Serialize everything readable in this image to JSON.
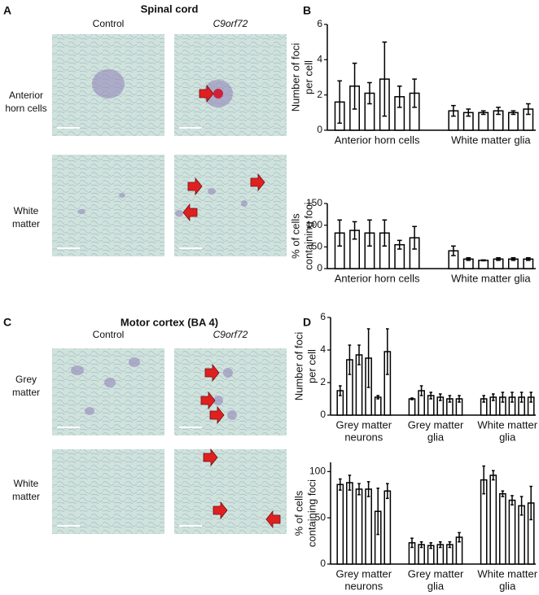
{
  "panels": [
    {
      "label": "A",
      "title": "Spinal cord",
      "columns": [
        "Control",
        "C9orf72"
      ],
      "rows": [
        [
          "Anterior",
          "horn cells"
        ],
        [
          "White",
          "matter"
        ]
      ]
    },
    {
      "label": "C",
      "title": "Motor cortex (BA 4)",
      "columns": [
        "Control",
        "C9orf72"
      ],
      "rows": [
        [
          "Grey",
          "matter"
        ],
        [
          "White",
          "matter"
        ]
      ]
    }
  ],
  "chart_data": [
    {
      "type": "bar",
      "panel": "B",
      "ylabel": [
        "Number of foci",
        "per cell"
      ],
      "ylim": [
        0,
        6
      ],
      "yticks": [
        0,
        2,
        4,
        6
      ],
      "color": "#ffffff",
      "groups": [
        {
          "label": [
            "Anterior horn cells"
          ],
          "values": [
            1.6,
            2.5,
            2.1,
            2.9,
            1.9,
            2.1
          ],
          "errors": [
            1.2,
            1.3,
            0.6,
            2.1,
            0.6,
            0.8
          ]
        },
        {
          "label": [
            "White matter glia"
          ],
          "values": [
            1.1,
            1.0,
            1.0,
            1.1,
            1.0,
            1.2
          ],
          "errors": [
            0.3,
            0.2,
            0.1,
            0.2,
            0.1,
            0.3
          ]
        }
      ]
    },
    {
      "type": "bar",
      "ylabel": [
        "% of cells",
        "containing foci"
      ],
      "ylim": [
        0,
        150
      ],
      "yticks": [
        0,
        50,
        100,
        150
      ],
      "color": "#ffffff",
      "groups": [
        {
          "label": [
            "Anterior horn cells"
          ],
          "values": [
            82,
            88,
            82,
            82,
            55,
            71
          ],
          "errors": [
            30,
            20,
            30,
            30,
            10,
            26
          ]
        },
        {
          "label": [
            "White matter glia"
          ],
          "values": [
            41,
            22,
            19,
            22,
            22,
            22
          ],
          "errors": [
            11,
            3,
            1,
            3,
            3,
            3
          ]
        }
      ]
    },
    {
      "type": "bar",
      "panel": "D",
      "ylabel": [
        "Number of foci",
        "per cell"
      ],
      "ylim": [
        0,
        6
      ],
      "yticks": [
        0,
        2,
        4,
        6
      ],
      "color": "#ffffff",
      "groups": [
        {
          "label": [
            "Grey matter",
            "neurons"
          ],
          "values": [
            1.5,
            3.4,
            3.7,
            3.5,
            1.1,
            3.9
          ],
          "errors": [
            0.3,
            0.9,
            0.6,
            1.8,
            0.1,
            1.4
          ]
        },
        {
          "label": [
            "Grey matter",
            "glia"
          ],
          "values": [
            1.0,
            1.5,
            1.2,
            1.1,
            1.0,
            1.0
          ],
          "errors": [
            0.05,
            0.3,
            0.2,
            0.2,
            0.2,
            0.2
          ]
        },
        {
          "label": [
            "White matter",
            "glia"
          ],
          "values": [
            1.0,
            1.1,
            1.1,
            1.1,
            1.1,
            1.1
          ],
          "errors": [
            0.2,
            0.2,
            0.3,
            0.3,
            0.3,
            0.3
          ]
        }
      ]
    },
    {
      "type": "bar",
      "ylabel": [
        "% of cells",
        "containing foci"
      ],
      "ylim": [
        0,
        110
      ],
      "yticks": [
        0,
        50,
        100
      ],
      "color": "#ffffff",
      "groups": [
        {
          "label": [
            "Grey matter",
            "neurons"
          ],
          "values": [
            86,
            88,
            81,
            81,
            57,
            79
          ],
          "errors": [
            6,
            8,
            6,
            8,
            25,
            8
          ]
        },
        {
          "label": [
            "Grey matter",
            "glia"
          ],
          "values": [
            23,
            21,
            20,
            21,
            21,
            29
          ],
          "errors": [
            5,
            3,
            3,
            3,
            3,
            5
          ]
        },
        {
          "label": [
            "White matter",
            "glia"
          ],
          "values": [
            91,
            96,
            76,
            69,
            63,
            66
          ],
          "errors": [
            15,
            5,
            3,
            5,
            10,
            18
          ]
        }
      ]
    }
  ]
}
